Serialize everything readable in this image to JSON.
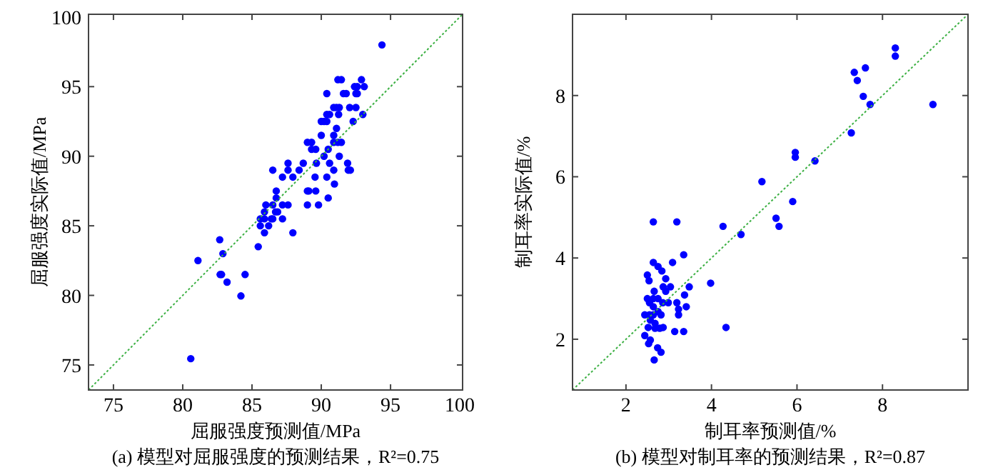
{
  "chart_data": [
    {
      "type": "scatter",
      "xlabel": "屈服强度预测值/MPa",
      "ylabel": "屈服强度实际值/MPa",
      "annotations": [
        "(a) 模型对屈服强度的预测结果，R²=0.75"
      ],
      "xlim": [
        73.2,
        100.2
      ],
      "ylim": [
        73.2,
        100.2
      ],
      "xticks": [
        75,
        80,
        85,
        90,
        95,
        100
      ],
      "yticks": [
        75,
        80,
        85,
        90,
        95,
        100
      ],
      "grid": false,
      "marker": "circle",
      "series": [
        {
          "color": "#0000ff",
          "x": [
            94.38,
            80.58,
            81.1,
            82.67,
            82.9,
            82.7,
            82.8,
            83.2,
            84.5,
            84.2,
            85.45,
            87.95,
            85.6,
            85.6,
            85.9,
            86.2,
            86.4,
            86.5,
            85.9,
            85.9,
            86.0,
            86.5,
            86.7,
            86.85,
            86.75,
            86.75,
            87.2,
            87.2,
            87.6,
            86.5,
            87.2,
            87.6,
            87.6,
            87.95,
            88.4,
            88.7,
            89.0,
            89.1,
            89.0,
            89.55,
            89.6,
            89.8,
            89.65,
            89.0,
            89.3,
            89.3,
            89.6,
            90.0,
            90.2,
            90.4,
            90.5,
            90.5,
            90.6,
            90.95,
            90.9,
            90.9,
            91.2,
            91.45,
            91.3,
            91.1,
            90.9,
            90.0,
            90.2,
            90.4,
            90.4,
            90.6,
            90.9,
            91.1,
            91.3,
            91.25,
            90.4,
            91.2,
            91.45,
            91.6,
            91.8,
            91.9,
            91.95,
            92.1,
            92.3,
            92.5,
            92.05,
            92.4,
            92.6,
            92.5,
            92.6,
            92.9,
            93.1,
            93.0
          ],
          "values": [
            98.0,
            75.45,
            82.5,
            84.0,
            83.0,
            81.5,
            81.5,
            80.95,
            81.5,
            79.96,
            83.5,
            84.5,
            85.0,
            85.5,
            85.5,
            85.0,
            85.5,
            85.5,
            84.5,
            86.0,
            86.5,
            86.5,
            86.0,
            86.0,
            87.0,
            87.5,
            86.5,
            85.5,
            86.5,
            89.0,
            88.5,
            89.0,
            89.5,
            88.5,
            89.0,
            89.5,
            87.5,
            87.5,
            86.5,
            88.5,
            87.5,
            86.5,
            89.5,
            91.0,
            91.0,
            90.5,
            90.5,
            91.5,
            90.0,
            88.5,
            87.0,
            90.5,
            89.5,
            88.0,
            89.0,
            91.0,
            91.0,
            91.0,
            90.0,
            92.0,
            91.5,
            92.5,
            92.5,
            92.5,
            93.0,
            93.0,
            93.5,
            93.5,
            93.5,
            93.0,
            94.5,
            95.5,
            95.5,
            94.5,
            94.5,
            89.5,
            89.0,
            89.0,
            92.5,
            93.5,
            93.5,
            95.0,
            95.0,
            94.5,
            94.5,
            95.5,
            95.0,
            93.0
          ]
        },
        {
          "type": "line",
          "color": "#3cb043",
          "line_style": "dotted",
          "marker": "none",
          "x": [
            73.2,
            100.2
          ],
          "values": [
            73.2,
            100.2
          ]
        }
      ]
    },
    {
      "type": "scatter",
      "xlabel": "制耳率预测值/%",
      "ylabel": "制耳率实际值/%",
      "annotations": [
        "(b) 模型对制耳率的预测结果，R²=0.87"
      ],
      "xlim": [
        0.75,
        10
      ],
      "ylim": [
        0.75,
        10
      ],
      "xticks": [
        2,
        4,
        6,
        8
      ],
      "yticks": [
        2,
        4,
        6,
        8
      ],
      "grid": false,
      "marker": "circle",
      "series": [
        {
          "color": "#0000ff",
          "x": [
            8.3,
            8.3,
            7.34,
            7.41,
            7.6,
            7.55,
            7.71,
            9.18,
            7.27,
            5.96,
            5.96,
            6.42,
            5.18,
            5.9,
            5.51,
            5.58,
            4.27,
            4.69,
            2.64,
            3.19,
            3.35,
            3.98,
            4.34,
            2.64,
            2.75,
            2.84,
            3.09,
            2.5,
            2.54,
            2.93,
            2.87,
            3.04,
            3.48,
            2.66,
            2.93,
            3.37,
            2.5,
            2.55,
            2.64,
            2.75,
            2.86,
            2.99,
            3.19,
            3.41,
            3.23,
            3.23,
            2.44,
            2.55,
            2.64,
            2.82,
            2.57,
            2.68,
            2.52,
            2.68,
            2.79,
            2.87,
            3.14,
            3.35,
            2.44,
            2.57,
            2.53,
            2.74,
            2.82,
            2.66,
            2.64,
            2.75
          ],
          "values": [
            9.17,
            8.97,
            8.57,
            8.37,
            8.68,
            7.98,
            7.78,
            7.78,
            7.08,
            6.6,
            6.48,
            6.39,
            5.88,
            5.39,
            4.98,
            4.78,
            4.78,
            4.58,
            4.89,
            4.89,
            4.08,
            3.38,
            2.29,
            3.89,
            3.79,
            3.68,
            3.89,
            3.58,
            3.44,
            3.49,
            3.29,
            3.29,
            3.29,
            3.18,
            3.18,
            3.09,
            3.0,
            2.9,
            3.0,
            3.0,
            2.9,
            2.9,
            2.9,
            2.8,
            2.74,
            2.6,
            2.6,
            2.6,
            2.6,
            2.6,
            2.47,
            2.39,
            2.29,
            2.27,
            2.27,
            2.29,
            2.19,
            2.19,
            2.09,
            1.98,
            1.89,
            1.79,
            1.68,
            1.49,
            2.8,
            2.68
          ]
        },
        {
          "type": "line",
          "color": "#3cb043",
          "line_style": "dotted",
          "marker": "none",
          "x": [
            0.75,
            10
          ],
          "values": [
            0.75,
            10
          ]
        }
      ]
    }
  ]
}
